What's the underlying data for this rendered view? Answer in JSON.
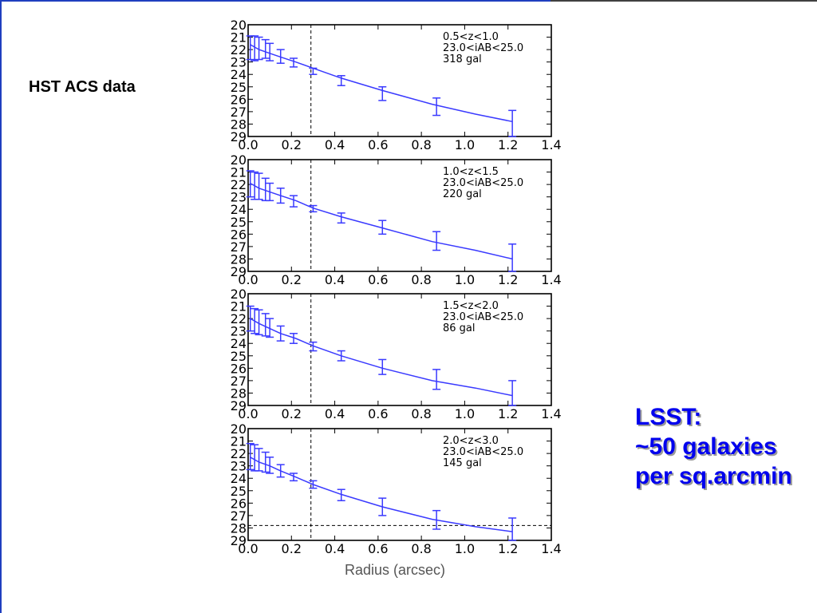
{
  "slide": {
    "title_label": "HST ACS data",
    "note_lines": [
      "LSST:",
      "~50 galaxies",
      "per sq.arcmin"
    ],
    "colors": {
      "frame_blue": "#1f3fbf",
      "series": "#3a3aff",
      "note_text": "#0000ee"
    }
  },
  "chart_data": [
    {
      "type": "line",
      "legend": [
        "0.5<z<1.0",
        "23.0<iAB<25.0",
        "318 gal"
      ],
      "xlim": [
        0.0,
        1.4
      ],
      "ylim": [
        29,
        20
      ],
      "yinverted": true,
      "xticks": [
        "0.0",
        "0.2",
        "0.4",
        "0.6",
        "0.8",
        "1.0",
        "1.2",
        "1.4"
      ],
      "yticks": [
        "20",
        "21",
        "22",
        "23",
        "24",
        "25",
        "26",
        "27",
        "28",
        "29"
      ],
      "vline_x": 0.29,
      "curve": [
        [
          0.01,
          21.6
        ],
        [
          0.05,
          22.0
        ],
        [
          0.1,
          22.3
        ],
        [
          0.15,
          22.6
        ],
        [
          0.22,
          23.0
        ],
        [
          0.3,
          23.5
        ],
        [
          0.43,
          24.3
        ],
        [
          0.62,
          25.3
        ],
        [
          0.85,
          26.4
        ],
        [
          1.05,
          27.2
        ],
        [
          1.22,
          27.8
        ]
      ],
      "points": [
        {
          "x": 0.01,
          "y": 21.5,
          "lo": 20.9,
          "hi": 22.8
        },
        {
          "x": 0.03,
          "y": 21.7,
          "lo": 20.9,
          "hi": 22.9
        },
        {
          "x": 0.05,
          "y": 21.8,
          "lo": 21.0,
          "hi": 22.8
        },
        {
          "x": 0.08,
          "y": 22.0,
          "lo": 21.2,
          "hi": 22.7
        },
        {
          "x": 0.1,
          "y": 22.2,
          "lo": 21.5,
          "hi": 22.9
        },
        {
          "x": 0.15,
          "y": 22.5,
          "lo": 22.0,
          "hi": 23.1
        },
        {
          "x": 0.21,
          "y": 23.0,
          "lo": 22.7,
          "hi": 23.4
        },
        {
          "x": 0.3,
          "y": 23.7,
          "lo": 23.5,
          "hi": 24.0
        },
        {
          "x": 0.43,
          "y": 24.5,
          "lo": 24.1,
          "hi": 24.9
        },
        {
          "x": 0.62,
          "y": 25.6,
          "lo": 25.0,
          "hi": 26.1
        },
        {
          "x": 0.87,
          "y": 26.6,
          "lo": 25.9,
          "hi": 27.3
        },
        {
          "x": 1.22,
          "y": 28.0,
          "lo": 26.9,
          "hi": 29.0
        }
      ],
      "hline_y": null
    },
    {
      "type": "line",
      "legend": [
        "1.0<z<1.5",
        "23.0<iAB<25.0",
        "220 gal"
      ],
      "xlim": [
        0.0,
        1.4
      ],
      "ylim": [
        29,
        20
      ],
      "yinverted": true,
      "xticks": [
        "0.0",
        "0.2",
        "0.4",
        "0.6",
        "0.8",
        "1.0",
        "1.2",
        "1.4"
      ],
      "yticks": [
        "20",
        "21",
        "22",
        "23",
        "24",
        "25",
        "26",
        "27",
        "28",
        "29"
      ],
      "vline_x": 0.29,
      "curve": [
        [
          0.01,
          21.9
        ],
        [
          0.05,
          22.3
        ],
        [
          0.1,
          22.6
        ],
        [
          0.15,
          22.9
        ],
        [
          0.22,
          23.3
        ],
        [
          0.3,
          23.9
        ],
        [
          0.43,
          24.6
        ],
        [
          0.62,
          25.5
        ],
        [
          0.85,
          26.6
        ],
        [
          1.05,
          27.3
        ],
        [
          1.22,
          28.0
        ]
      ],
      "points": [
        {
          "x": 0.01,
          "y": 21.8,
          "lo": 20.9,
          "hi": 23.0
        },
        {
          "x": 0.03,
          "y": 22.0,
          "lo": 21.0,
          "hi": 23.2
        },
        {
          "x": 0.05,
          "y": 22.2,
          "lo": 21.1,
          "hi": 23.2
        },
        {
          "x": 0.08,
          "y": 22.4,
          "lo": 21.5,
          "hi": 23.3
        },
        {
          "x": 0.1,
          "y": 22.6,
          "lo": 21.9,
          "hi": 23.3
        },
        {
          "x": 0.15,
          "y": 22.9,
          "lo": 22.3,
          "hi": 23.5
        },
        {
          "x": 0.21,
          "y": 23.3,
          "lo": 22.9,
          "hi": 23.8
        },
        {
          "x": 0.3,
          "y": 23.9,
          "lo": 23.7,
          "hi": 24.2
        },
        {
          "x": 0.43,
          "y": 24.7,
          "lo": 24.3,
          "hi": 25.1
        },
        {
          "x": 0.62,
          "y": 25.5,
          "lo": 24.9,
          "hi": 26.0
        },
        {
          "x": 0.87,
          "y": 26.6,
          "lo": 25.8,
          "hi": 27.3
        },
        {
          "x": 1.22,
          "y": 28.0,
          "lo": 26.8,
          "hi": 29.0
        }
      ],
      "hline_y": null
    },
    {
      "type": "line",
      "legend": [
        "1.5<z<2.0",
        "23.0<iAB<25.0",
        "86 gal"
      ],
      "xlim": [
        0.0,
        1.4
      ],
      "ylim": [
        29,
        20
      ],
      "yinverted": true,
      "xticks": [
        "0.0",
        "0.2",
        "0.4",
        "0.6",
        "0.8",
        "1.0",
        "1.2",
        "1.4"
      ],
      "yticks": [
        "20",
        "21",
        "22",
        "23",
        "24",
        "25",
        "26",
        "27",
        "28",
        "29"
      ],
      "vline_x": 0.29,
      "curve": [
        [
          0.01,
          22.0
        ],
        [
          0.05,
          22.4
        ],
        [
          0.1,
          22.8
        ],
        [
          0.15,
          23.2
        ],
        [
          0.22,
          23.6
        ],
        [
          0.3,
          24.2
        ],
        [
          0.43,
          25.0
        ],
        [
          0.62,
          26.0
        ],
        [
          0.85,
          27.0
        ],
        [
          1.05,
          27.6
        ],
        [
          1.22,
          28.2
        ]
      ],
      "points": [
        {
          "x": 0.01,
          "y": 21.9,
          "lo": 21.0,
          "hi": 23.0
        },
        {
          "x": 0.03,
          "y": 22.1,
          "lo": 21.2,
          "hi": 23.2
        },
        {
          "x": 0.05,
          "y": 22.3,
          "lo": 21.3,
          "hi": 23.3
        },
        {
          "x": 0.08,
          "y": 22.6,
          "lo": 21.6,
          "hi": 23.4
        },
        {
          "x": 0.1,
          "y": 22.8,
          "lo": 22.0,
          "hi": 23.5
        },
        {
          "x": 0.15,
          "y": 23.2,
          "lo": 22.6,
          "hi": 23.8
        },
        {
          "x": 0.21,
          "y": 23.6,
          "lo": 23.2,
          "hi": 24.0
        },
        {
          "x": 0.3,
          "y": 24.2,
          "lo": 23.9,
          "hi": 24.6
        },
        {
          "x": 0.43,
          "y": 25.0,
          "lo": 24.6,
          "hi": 25.4
        },
        {
          "x": 0.62,
          "y": 25.9,
          "lo": 25.3,
          "hi": 26.5
        },
        {
          "x": 0.87,
          "y": 26.9,
          "lo": 26.1,
          "hi": 27.7
        },
        {
          "x": 1.22,
          "y": 28.2,
          "lo": 27.0,
          "hi": 29.0
        }
      ],
      "hline_y": null
    },
    {
      "type": "line",
      "legend": [
        "2.0<z<3.0",
        "23.0<iAB<25.0",
        "145 gal"
      ],
      "xlim": [
        0.0,
        1.4
      ],
      "ylim": [
        29,
        20
      ],
      "yinverted": true,
      "xticks": [
        "0.0",
        "0.2",
        "0.4",
        "0.6",
        "0.8",
        "1.0",
        "1.2",
        "1.4"
      ],
      "yticks": [
        "20",
        "21",
        "22",
        "23",
        "24",
        "25",
        "26",
        "27",
        "28",
        "29"
      ],
      "vline_x": 0.29,
      "curve": [
        [
          0.01,
          22.3
        ],
        [
          0.05,
          22.7
        ],
        [
          0.1,
          23.0
        ],
        [
          0.15,
          23.4
        ],
        [
          0.22,
          23.9
        ],
        [
          0.3,
          24.5
        ],
        [
          0.43,
          25.3
        ],
        [
          0.62,
          26.3
        ],
        [
          0.85,
          27.3
        ],
        [
          1.05,
          27.9
        ],
        [
          1.22,
          28.3
        ]
      ],
      "points": [
        {
          "x": 0.01,
          "y": 22.2,
          "lo": 21.2,
          "hi": 23.3
        },
        {
          "x": 0.03,
          "y": 22.4,
          "lo": 21.3,
          "hi": 23.4
        },
        {
          "x": 0.05,
          "y": 22.6,
          "lo": 21.6,
          "hi": 23.4
        },
        {
          "x": 0.08,
          "y": 22.8,
          "lo": 21.9,
          "hi": 23.5
        },
        {
          "x": 0.1,
          "y": 23.0,
          "lo": 22.3,
          "hi": 23.6
        },
        {
          "x": 0.15,
          "y": 23.4,
          "lo": 22.9,
          "hi": 23.9
        },
        {
          "x": 0.21,
          "y": 23.9,
          "lo": 23.6,
          "hi": 24.2
        },
        {
          "x": 0.3,
          "y": 24.5,
          "lo": 24.2,
          "hi": 24.8
        },
        {
          "x": 0.43,
          "y": 25.3,
          "lo": 24.9,
          "hi": 25.8
        },
        {
          "x": 0.62,
          "y": 26.3,
          "lo": 25.6,
          "hi": 27.0
        },
        {
          "x": 0.87,
          "y": 27.3,
          "lo": 26.6,
          "hi": 28.1
        },
        {
          "x": 1.22,
          "y": 28.3,
          "lo": 27.2,
          "hi": 29.0
        }
      ],
      "hline_y": 27.8
    }
  ],
  "xlabel": "Radius (arcsec)"
}
